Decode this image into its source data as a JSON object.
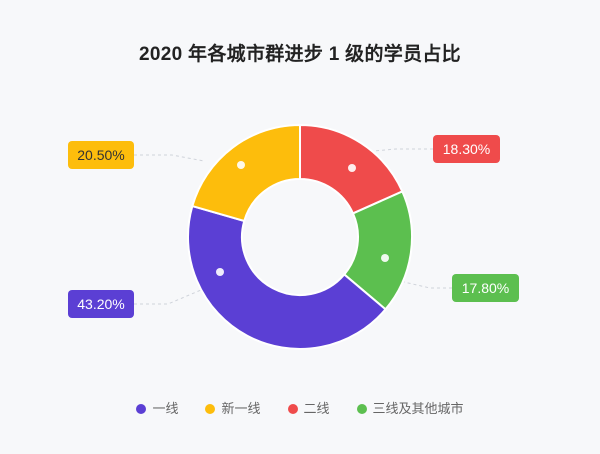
{
  "colors": {
    "background": "#f7f8fa",
    "title": "#222222",
    "legend_text": "#666666",
    "leader_line": "#cfd3da"
  },
  "chart_data": {
    "type": "pie",
    "donut": true,
    "title": "2020 年各城市群进步 1 级的学员占比",
    "categories": [
      "一线",
      "新一线",
      "二线",
      "三线及其他城市"
    ],
    "values": [
      43.2,
      20.5,
      18.3,
      17.8
    ],
    "value_labels": [
      "43.20%",
      "20.50%",
      "18.30%",
      "17.80%"
    ],
    "colors": [
      "#5b3fd4",
      "#fdbd0c",
      "#ef4b4b",
      "#5cbf4f"
    ],
    "label_text_colors": [
      "#ffffff",
      "#333333",
      "#ffffff",
      "#ffffff"
    ],
    "legend": "bottom"
  }
}
